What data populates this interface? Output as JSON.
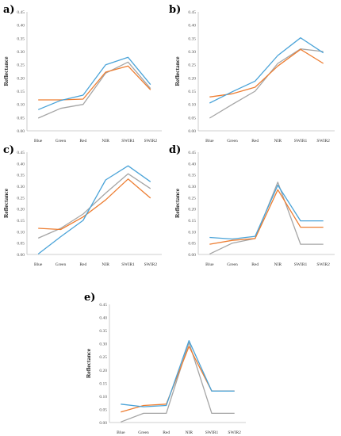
{
  "colors": {
    "blue": "#4aa3d8",
    "orange": "#ed7d31",
    "gray": "#a5a5a5"
  },
  "chart_data": [
    {
      "panel": "a)",
      "type": "line",
      "categories": [
        "Blue",
        "Green",
        "Red",
        "NIR",
        "SWIR1",
        "SWIR2"
      ],
      "ylabel": "Reflectance",
      "ylim": [
        0,
        0.45
      ],
      "yticks": [
        "0.00",
        "0.05",
        "0.10",
        "0.15",
        "0.20",
        "0.25",
        "0.30",
        "0.35",
        "0.40",
        "0.45"
      ],
      "grid": false,
      "series": [
        {
          "color": "blue",
          "values": [
            0.08,
            0.115,
            0.135,
            0.25,
            0.278,
            0.175
          ]
        },
        {
          "color": "orange",
          "values": [
            0.117,
            0.117,
            0.12,
            0.222,
            0.245,
            0.155
          ]
        },
        {
          "color": "gray",
          "values": [
            0.048,
            0.085,
            0.1,
            0.218,
            0.26,
            0.16
          ]
        }
      ]
    },
    {
      "panel": "b)",
      "type": "line",
      "categories": [
        "Blue",
        "Green",
        "Red",
        "NIR",
        "SWIR1",
        "SWIR2"
      ],
      "ylabel": "Reflectance",
      "ylim": [
        0,
        0.45
      ],
      "yticks": [
        "0.00",
        "0.05",
        "0.10",
        "0.15",
        "0.20",
        "0.25",
        "0.30",
        "0.35",
        "0.40",
        "0.45"
      ],
      "grid": false,
      "series": [
        {
          "color": "blue",
          "values": [
            0.105,
            0.148,
            0.188,
            0.285,
            0.352,
            0.295
          ]
        },
        {
          "color": "orange",
          "values": [
            0.128,
            0.14,
            0.165,
            0.245,
            0.308,
            0.255
          ]
        },
        {
          "color": "gray",
          "values": [
            0.048,
            0.1,
            0.15,
            0.255,
            0.31,
            0.3
          ]
        }
      ]
    },
    {
      "panel": "c)",
      "type": "line",
      "categories": [
        "Blue",
        "Green",
        "Red",
        "NIR",
        "SWIR1",
        "SWIR2"
      ],
      "ylabel": "Reflectance",
      "ylim": [
        0,
        0.45
      ],
      "yticks": [
        "0.00",
        "0.05",
        "0.10",
        "0.15",
        "0.20",
        "0.25",
        "0.30",
        "0.35",
        "0.40",
        "0.45"
      ],
      "grid": false,
      "series": [
        {
          "color": "blue",
          "values": [
            0.002,
            0.078,
            0.15,
            0.328,
            0.39,
            0.32
          ]
        },
        {
          "color": "orange",
          "values": [
            0.115,
            0.11,
            0.165,
            0.24,
            0.332,
            0.248
          ]
        },
        {
          "color": "gray",
          "values": [
            0.072,
            0.115,
            0.178,
            0.27,
            0.355,
            0.29
          ]
        }
      ]
    },
    {
      "panel": "d)",
      "type": "line",
      "categories": [
        "Blue",
        "Green",
        "Red",
        "NIR",
        "SWIR1",
        "SWIR2"
      ],
      "ylabel": "Reflectance",
      "ylim": [
        0,
        0.45
      ],
      "yticks": [
        "0.00",
        "0.05",
        "0.10",
        "0.15",
        "0.20",
        "0.25",
        "0.30",
        "0.35",
        "0.40",
        "0.45"
      ],
      "grid": false,
      "series": [
        {
          "color": "blue",
          "values": [
            0.075,
            0.068,
            0.08,
            0.305,
            0.148,
            0.148
          ]
        },
        {
          "color": "orange",
          "values": [
            0.045,
            0.062,
            0.07,
            0.285,
            0.12,
            0.12
          ]
        },
        {
          "color": "gray",
          "values": [
            0.002,
            0.05,
            0.07,
            0.318,
            0.045,
            0.045
          ]
        }
      ]
    },
    {
      "panel": "e)",
      "type": "line",
      "categories": [
        "Blue",
        "Green",
        "Red",
        "NIR",
        "SWIR1",
        "SWIR2"
      ],
      "ylabel": "Reflectance",
      "ylim": [
        0,
        0.45
      ],
      "yticks": [
        "0.00",
        "0.05",
        "0.10",
        "0.15",
        "0.20",
        "0.25",
        "0.30",
        "0.35",
        "0.40",
        "0.45"
      ],
      "grid": false,
      "series": [
        {
          "color": "blue",
          "values": [
            0.07,
            0.06,
            0.065,
            0.312,
            0.12,
            0.12
          ]
        },
        {
          "color": "orange",
          "values": [
            0.04,
            0.065,
            0.07,
            0.29,
            0.12,
            0.12
          ]
        },
        {
          "color": "gray",
          "values": [
            0.002,
            0.035,
            0.035,
            0.305,
            0.035,
            0.035
          ]
        }
      ]
    }
  ]
}
